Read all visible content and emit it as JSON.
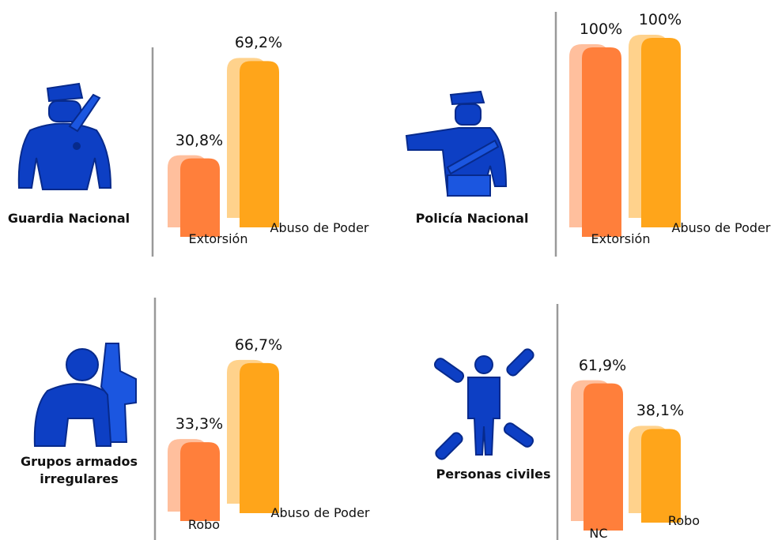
{
  "chart_data": [
    {
      "type": "bar",
      "title": "Guardia Nacional",
      "categories": [
        "Extorsión",
        "Abuso de Poder"
      ],
      "values": [
        30.8,
        69.2
      ],
      "value_labels": [
        "30,8%",
        "69,2%"
      ],
      "colors": [
        "#ff7f3b",
        "#ffa51a"
      ]
    },
    {
      "type": "bar",
      "title": "Policía Nacional",
      "categories": [
        "Extorsión",
        "Abuso de Poder"
      ],
      "values": [
        100,
        100
      ],
      "value_labels": [
        "100%",
        "100%"
      ],
      "colors": [
        "#ff7f3b",
        "#ffa51a"
      ]
    },
    {
      "type": "bar",
      "title": "Grupos armados irregulares",
      "categories": [
        "Robo",
        "Abuso de Poder"
      ],
      "values": [
        33.3,
        66.7
      ],
      "value_labels": [
        "33,3%",
        "66,7%"
      ],
      "colors": [
        "#ff7f3b",
        "#ffa51a"
      ]
    },
    {
      "type": "bar",
      "title": "Personas civiles",
      "categories": [
        "NC",
        "Robo"
      ],
      "values": [
        61.9,
        38.1
      ],
      "value_labels": [
        "61,9%",
        "38,1%"
      ],
      "colors": [
        "#ff7f3b",
        "#ffa51a"
      ]
    }
  ]
}
